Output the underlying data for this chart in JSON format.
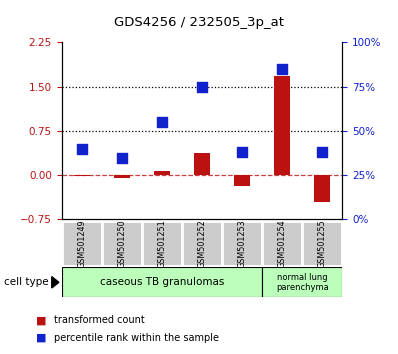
{
  "title": "GDS4256 / 232505_3p_at",
  "samples": [
    "GSM501249",
    "GSM501250",
    "GSM501251",
    "GSM501252",
    "GSM501253",
    "GSM501254",
    "GSM501255"
  ],
  "transformed_count": [
    -0.02,
    -0.05,
    0.08,
    0.38,
    -0.18,
    1.68,
    -0.45
  ],
  "percentile_rank": [
    40,
    35,
    55,
    75,
    38,
    85,
    38
  ],
  "red_color": "#bb1111",
  "blue_color": "#1122cc",
  "ylim_left": [
    -0.75,
    2.25
  ],
  "yticks_left": [
    -0.75,
    0,
    0.75,
    1.5,
    2.25
  ],
  "ylim_right": [
    0,
    100
  ],
  "yticks_right": [
    0,
    25,
    50,
    75,
    100
  ],
  "ytick_labels_right": [
    "0%",
    "25%",
    "50%",
    "75%",
    "100%"
  ],
  "hlines": [
    0.75,
    1.5
  ],
  "cell_type_label": "cell type",
  "legend_red": "transformed count",
  "legend_blue": "percentile rank within the sample",
  "bar_width": 0.4,
  "dot_size": 55,
  "bg_gray": "#cccccc",
  "bg_green": "#bbffbb",
  "fig_width": 3.98,
  "fig_height": 3.54
}
